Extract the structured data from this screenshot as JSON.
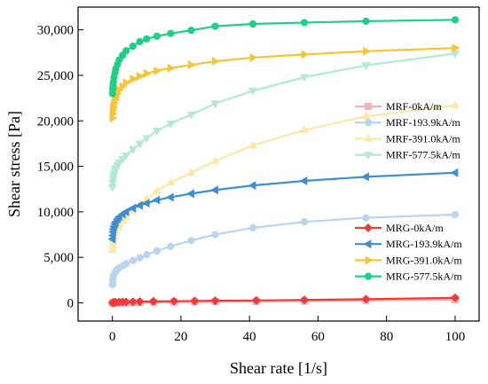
{
  "chart_data": {
    "type": "line",
    "xlabel": "Shear rate [1/s]",
    "ylabel": "Shear stress [Pa]",
    "xlim": [
      -10,
      107
    ],
    "ylim": [
      -2000,
      32500
    ],
    "xticks": [
      0,
      20,
      40,
      60,
      80,
      100
    ],
    "yticks": [
      0,
      5000,
      10000,
      15000,
      20000,
      25000,
      30000
    ],
    "ytick_labels": [
      "0",
      "5,000",
      "10,000",
      "15,000",
      "20,000",
      "25,000",
      "30,000"
    ],
    "legends": [
      {
        "position": "center-right",
        "entries": [
          "MRF-0kA/m",
          "MRF-193.9kA/m",
          "MRF-391.0kA/m",
          "MRF-577.5kA/m"
        ]
      },
      {
        "position": "bottom-right",
        "entries": [
          "MRG-0kA/m",
          "MRG-193.9kA/m",
          "MRG-391.0kA/m",
          "MRG-577.5kA/m"
        ]
      }
    ],
    "series": [
      {
        "name": "MRF-0kA/m",
        "color": "#f6b3b3",
        "marker": "square",
        "points": [
          [
            0.05,
            0
          ],
          [
            0.1,
            5
          ],
          [
            0.2,
            8
          ],
          [
            0.3,
            10
          ],
          [
            0.5,
            12
          ],
          [
            0.8,
            15
          ],
          [
            1,
            18
          ],
          [
            2,
            25
          ],
          [
            3,
            30
          ],
          [
            4,
            35
          ],
          [
            6,
            45
          ],
          [
            8,
            55
          ],
          [
            12,
            70
          ],
          [
            18,
            90
          ],
          [
            24,
            110
          ],
          [
            30,
            135
          ],
          [
            42,
            160
          ],
          [
            56,
            200
          ],
          [
            74,
            260
          ],
          [
            100,
            350
          ]
        ]
      },
      {
        "name": "MRF-193.9kA/m",
        "color": "#b8d4ee",
        "marker": "circle",
        "points": [
          [
            0.05,
            2000
          ],
          [
            0.1,
            2400
          ],
          [
            0.2,
            2700
          ],
          [
            0.3,
            2950
          ],
          [
            0.5,
            3150
          ],
          [
            0.8,
            3350
          ],
          [
            1,
            3500
          ],
          [
            1.5,
            3700
          ],
          [
            2,
            3850
          ],
          [
            3,
            4050
          ],
          [
            4,
            4300
          ],
          [
            6,
            4650
          ],
          [
            8,
            4950
          ],
          [
            10,
            5300
          ],
          [
            13,
            5700
          ],
          [
            17,
            6200
          ],
          [
            23,
            6850
          ],
          [
            30,
            7500
          ],
          [
            41,
            8250
          ],
          [
            56,
            8900
          ],
          [
            74,
            9350
          ],
          [
            100,
            9700
          ]
        ]
      },
      {
        "name": "MRF-391.0kA/m",
        "color": "#fbe8a8",
        "marker": "triangle",
        "points": [
          [
            0.05,
            5800
          ],
          [
            0.1,
            6300
          ],
          [
            0.2,
            6700
          ],
          [
            0.3,
            7000
          ],
          [
            0.5,
            7300
          ],
          [
            0.8,
            7700
          ],
          [
            1,
            8000
          ],
          [
            1.5,
            8300
          ],
          [
            2,
            8600
          ],
          [
            3,
            9000
          ],
          [
            4,
            9400
          ],
          [
            6,
            10100
          ],
          [
            8,
            10800
          ],
          [
            10,
            11400
          ],
          [
            13,
            12300
          ],
          [
            17,
            13200
          ],
          [
            23,
            14300
          ],
          [
            30,
            15600
          ],
          [
            41,
            17300
          ],
          [
            56,
            19000
          ],
          [
            74,
            20500
          ],
          [
            100,
            21700
          ]
        ]
      },
      {
        "name": "MRF-577.5kA/m",
        "color": "#b2e8d4",
        "marker": "triangle-down",
        "points": [
          [
            0.05,
            12700
          ],
          [
            0.1,
            13200
          ],
          [
            0.2,
            13600
          ],
          [
            0.3,
            13900
          ],
          [
            0.5,
            14200
          ],
          [
            0.8,
            14500
          ],
          [
            1,
            14800
          ],
          [
            1.5,
            15100
          ],
          [
            2,
            15400
          ],
          [
            3,
            15800
          ],
          [
            4,
            16200
          ],
          [
            6,
            16900
          ],
          [
            8,
            17500
          ],
          [
            10,
            18100
          ],
          [
            13,
            18900
          ],
          [
            17,
            19700
          ],
          [
            23,
            20700
          ],
          [
            30,
            21900
          ],
          [
            41,
            23300
          ],
          [
            56,
            24800
          ],
          [
            74,
            26100
          ],
          [
            100,
            27400
          ]
        ]
      },
      {
        "name": "MRG-0kA/m",
        "color": "#f03a3a",
        "marker": "diamond",
        "points": [
          [
            0.05,
            0
          ],
          [
            0.1,
            10
          ],
          [
            0.2,
            20
          ],
          [
            0.3,
            30
          ],
          [
            0.5,
            40
          ],
          [
            0.8,
            50
          ],
          [
            1,
            60
          ],
          [
            2,
            80
          ],
          [
            3,
            90
          ],
          [
            4,
            100
          ],
          [
            6,
            120
          ],
          [
            8,
            140
          ],
          [
            12,
            160
          ],
          [
            18,
            180
          ],
          [
            24,
            200
          ],
          [
            30,
            230
          ],
          [
            42,
            260
          ],
          [
            56,
            320
          ],
          [
            74,
            400
          ],
          [
            100,
            550
          ]
        ]
      },
      {
        "name": "MRG-193.9kA/m",
        "color": "#3f8fcf",
        "marker": "triangle-left",
        "points": [
          [
            0.05,
            7000
          ],
          [
            0.1,
            7400
          ],
          [
            0.2,
            7800
          ],
          [
            0.3,
            8100
          ],
          [
            0.5,
            8400
          ],
          [
            0.8,
            8700
          ],
          [
            1,
            8900
          ],
          [
            1.5,
            9200
          ],
          [
            2,
            9450
          ],
          [
            3,
            9750
          ],
          [
            4,
            10000
          ],
          [
            6,
            10400
          ],
          [
            8,
            10700
          ],
          [
            10,
            10950
          ],
          [
            13,
            11300
          ],
          [
            17,
            11600
          ],
          [
            23,
            12000
          ],
          [
            30,
            12400
          ],
          [
            41,
            12900
          ],
          [
            56,
            13400
          ],
          [
            74,
            13850
          ],
          [
            100,
            14300
          ]
        ]
      },
      {
        "name": "MRG-391.0kA/m",
        "color": "#f7c436",
        "marker": "triangle-right",
        "points": [
          [
            0.05,
            20300
          ],
          [
            0.1,
            20800
          ],
          [
            0.2,
            21200
          ],
          [
            0.3,
            21500
          ],
          [
            0.5,
            21900
          ],
          [
            0.8,
            22300
          ],
          [
            1,
            22600
          ],
          [
            1.5,
            23000
          ],
          [
            2,
            23400
          ],
          [
            3,
            23800
          ],
          [
            4,
            24200
          ],
          [
            6,
            24600
          ],
          [
            8,
            24900
          ],
          [
            10,
            25200
          ],
          [
            13,
            25500
          ],
          [
            17,
            25800
          ],
          [
            23,
            26150
          ],
          [
            30,
            26550
          ],
          [
            41,
            26950
          ],
          [
            56,
            27300
          ],
          [
            74,
            27650
          ],
          [
            100,
            28000
          ]
        ]
      },
      {
        "name": "MRG-577.5kA/m",
        "color": "#1fcf86",
        "marker": "circle",
        "points": [
          [
            0.05,
            23000
          ],
          [
            0.1,
            23500
          ],
          [
            0.2,
            23900
          ],
          [
            0.3,
            24300
          ],
          [
            0.5,
            24800
          ],
          [
            0.8,
            25300
          ],
          [
            1,
            25700
          ],
          [
            1.5,
            26200
          ],
          [
            2,
            26700
          ],
          [
            3,
            27200
          ],
          [
            4,
            27700
          ],
          [
            6,
            28200
          ],
          [
            8,
            28700
          ],
          [
            10,
            29000
          ],
          [
            13,
            29300
          ],
          [
            17,
            29600
          ],
          [
            23,
            29950
          ],
          [
            30,
            30400
          ],
          [
            41,
            30650
          ],
          [
            56,
            30800
          ],
          [
            74,
            30950
          ],
          [
            100,
            31100
          ]
        ]
      }
    ]
  }
}
